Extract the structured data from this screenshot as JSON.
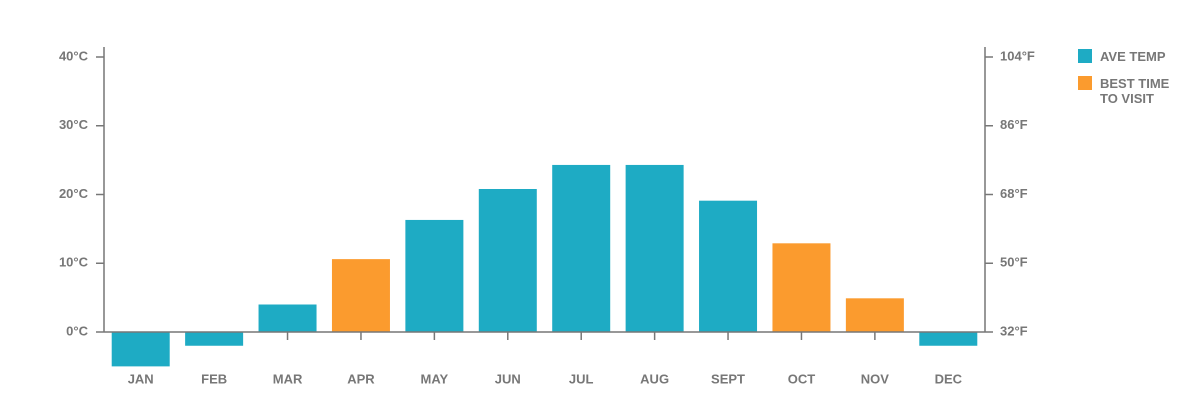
{
  "chart_data": {
    "type": "bar",
    "categories": [
      "JAN",
      "FEB",
      "MAR",
      "APR",
      "MAY",
      "JUN",
      "JUL",
      "AUG",
      "SEPT",
      "OCT",
      "NOV",
      "DEC"
    ],
    "series": [
      {
        "name": "AVE TEMP",
        "color": "#1eabc4",
        "values": [
          -5,
          -2,
          4,
          null,
          16.3,
          20.8,
          24.3,
          24.3,
          19.1,
          null,
          null,
          -2
        ]
      },
      {
        "name": "BEST TIME TO VISIT",
        "color": "#fb9b2e",
        "values": [
          null,
          null,
          null,
          10.6,
          null,
          null,
          null,
          null,
          null,
          12.9,
          4.9,
          null
        ]
      }
    ],
    "ylim": [
      0,
      40
    ],
    "yticks": [
      {
        "value": 0,
        "label": "0°C"
      },
      {
        "value": 10,
        "label": "10°C"
      },
      {
        "value": 20,
        "label": "20°C"
      },
      {
        "value": 30,
        "label": "30°C"
      },
      {
        "value": 40,
        "label": "40°C"
      }
    ],
    "y2lim": [
      32,
      104
    ],
    "y2ticks": [
      {
        "value": 32,
        "label": "32°F"
      },
      {
        "value": 50,
        "label": "50°F"
      },
      {
        "value": 68,
        "label": "68°F"
      },
      {
        "value": 86,
        "label": "86°F"
      },
      {
        "value": 104,
        "label": "104°F"
      }
    ],
    "legend": "right"
  }
}
